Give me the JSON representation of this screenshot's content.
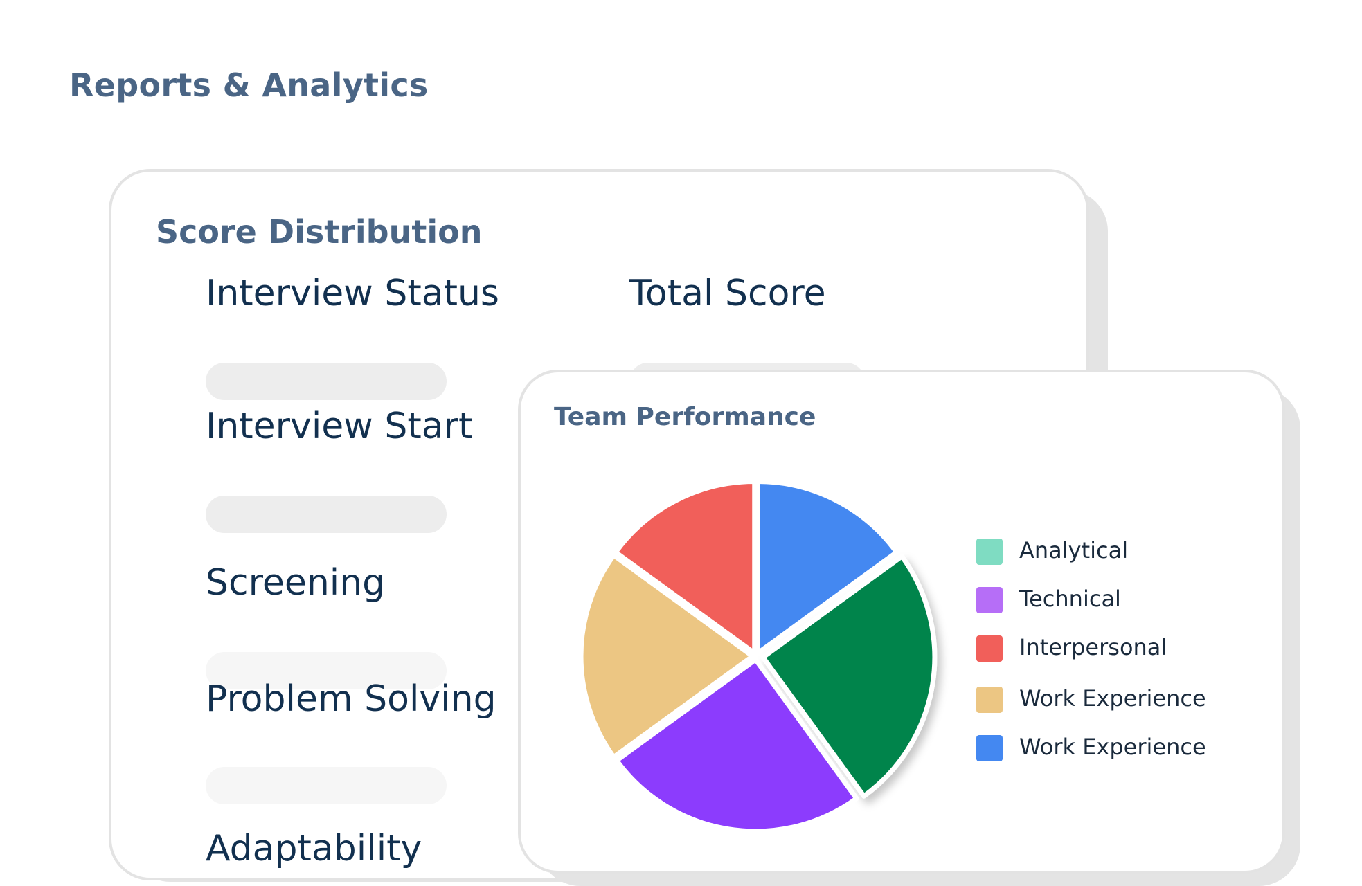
{
  "page": {
    "title": "Reports & Analytics"
  },
  "score_distribution": {
    "title": "Score Distribution",
    "fields": [
      {
        "label": "Interview Status"
      },
      {
        "label": "Interview Start"
      },
      {
        "label": "Screening"
      },
      {
        "label": "Problem Solving"
      },
      {
        "label": "Adaptability"
      }
    ],
    "total_score_label": "Total Score"
  },
  "team_performance": {
    "title": "Team Performance",
    "legend": [
      {
        "label": "Analytical",
        "color": "#7fdcc2"
      },
      {
        "label": "Technical",
        "color": "#b66ef7"
      },
      {
        "label": "Interpersonal",
        "color": "#f15f5a"
      },
      {
        "label": "Work Experience",
        "color": "#ecc683"
      },
      {
        "label": "Work Experience",
        "color": "#4488f1"
      }
    ]
  },
  "chart_data": {
    "type": "pie",
    "slices": [
      {
        "color": "#4488f1",
        "value": 15
      },
      {
        "color": "#02844c",
        "value": 25
      },
      {
        "color": "#8c3cfd",
        "value": 25
      },
      {
        "color": "#ecc683",
        "value": 20
      },
      {
        "color": "#f15f5a",
        "value": 15
      }
    ]
  }
}
